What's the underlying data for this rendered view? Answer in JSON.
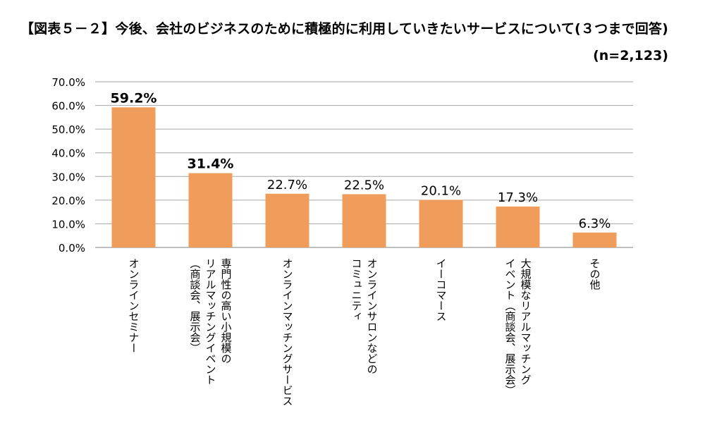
{
  "chart_data": {
    "type": "bar",
    "title": "【図表５－２】今後、会社のビジネスのために積極的に利用していきたいサービスについて(３つまで回答)",
    "subtitle": "(n=2,123)",
    "categories": [
      [
        "オンラインセミナー"
      ],
      [
        "専門性の高い小規模の",
        "リアルマッチングイベント",
        "（商談会、展示会）"
      ],
      [
        "オンラインマッチングサービス"
      ],
      [
        "オンラインサロンなどの",
        "コミュニティ"
      ],
      [
        "イーコマース"
      ],
      [
        "大規模なリアルマッチング",
        "イベント（商談会、展示会）"
      ],
      [
        "その他"
      ]
    ],
    "values": [
      59.2,
      31.4,
      22.7,
      22.5,
      20.1,
      17.3,
      6.3
    ],
    "value_labels": [
      "59.2%",
      "31.4%",
      "22.7%",
      "22.5%",
      "20.1%",
      "17.3%",
      "6.3%"
    ],
    "bold_labels": [
      true,
      true,
      false,
      false,
      false,
      false,
      false
    ],
    "ylim": [
      0,
      70
    ],
    "yticks": [
      "0.0%",
      "10.0%",
      "20.0%",
      "30.0%",
      "40.0%",
      "50.0%",
      "60.0%",
      "70.0%"
    ],
    "grid": true,
    "bar_color": "#F09C5A",
    "grid_color": "#A6A6A6"
  }
}
